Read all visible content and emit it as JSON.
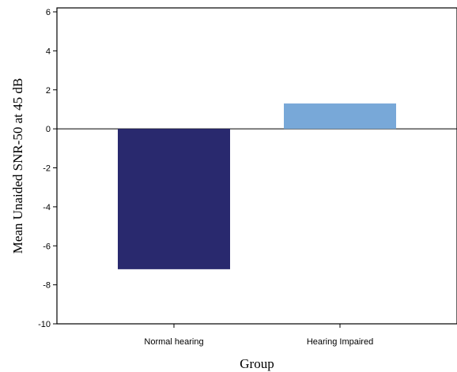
{
  "chart_data": {
    "type": "bar",
    "xlabel": "Group",
    "ylabel": "Mean Unaided SNR-50 at 45 dB",
    "categories": [
      "Normal hearing",
      "Hearing Impaired"
    ],
    "values": [
      -7.2,
      1.3
    ],
    "ylim": [
      -10,
      6
    ],
    "yticks": [
      6,
      4,
      2,
      0,
      -2,
      -4,
      -6,
      -8,
      -10
    ],
    "bar_colors": [
      "#29296e",
      "#78a8d8"
    ],
    "grid": false,
    "zero_line": true
  }
}
